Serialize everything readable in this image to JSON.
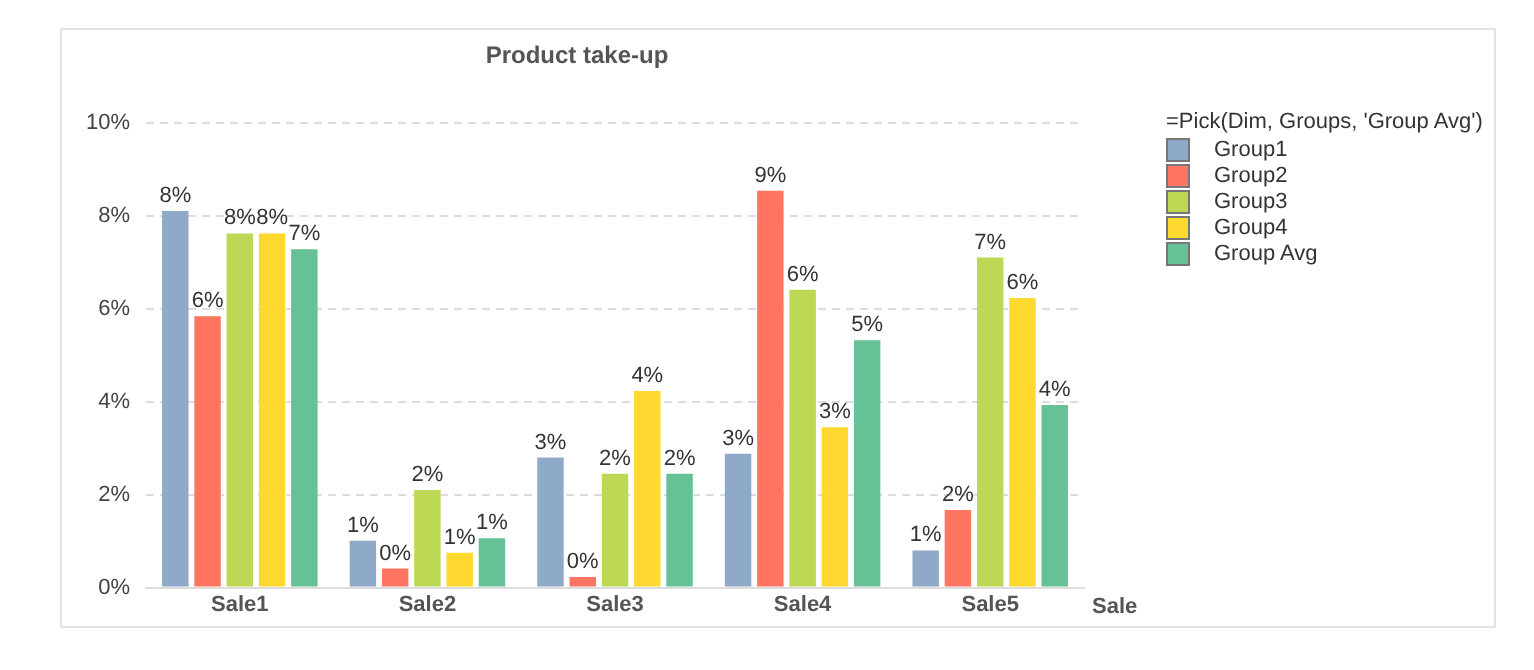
{
  "chart_data": {
    "type": "bar",
    "title": "Product take-up",
    "xlabel": "Sale",
    "legend_title": "=Pick(Dim, Groups, 'Group Avg')",
    "legend": "top right",
    "grid": "y",
    "categories": [
      "Sale1",
      "Sale2",
      "Sale3",
      "Sale4",
      "Sale5"
    ],
    "ylim": [
      0,
      10
    ],
    "yticks": [
      {
        "value": 0,
        "label": "0%"
      },
      {
        "value": 2,
        "label": "2%"
      },
      {
        "value": 4,
        "label": "4%"
      },
      {
        "value": 6,
        "label": "6%"
      },
      {
        "value": 8,
        "label": "8%"
      },
      {
        "value": 10,
        "label": "10%"
      }
    ],
    "series": [
      {
        "name": "Group1",
        "color": "#8eaac8",
        "values": [
          8.1,
          1.01,
          2.8,
          2.88,
          0.8
        ],
        "value_labels": [
          "8%",
          "1%",
          "3%",
          "3%",
          "1%"
        ]
      },
      {
        "name": "Group2",
        "color": "#ff7562",
        "values": [
          5.84,
          0.41,
          0.23,
          8.54,
          1.67
        ],
        "value_labels": [
          "6%",
          "0%",
          "0%",
          "9%",
          "2%"
        ]
      },
      {
        "name": "Group3",
        "color": "#bcd855",
        "values": [
          7.62,
          2.1,
          2.45,
          6.41,
          7.1
        ],
        "value_labels": [
          "8%",
          "2%",
          "2%",
          "6%",
          "7%"
        ]
      },
      {
        "name": "Group4",
        "color": "#ffd92f",
        "values": [
          7.62,
          0.75,
          4.23,
          3.45,
          6.23
        ],
        "value_labels": [
          "8%",
          "1%",
          "4%",
          "3%",
          "6%"
        ]
      },
      {
        "name": "Group Avg",
        "color": "#66c296",
        "values": [
          7.28,
          1.06,
          2.45,
          5.32,
          3.93
        ],
        "value_labels": [
          "7%",
          "1%",
          "2%",
          "5%",
          "4%"
        ]
      }
    ]
  }
}
